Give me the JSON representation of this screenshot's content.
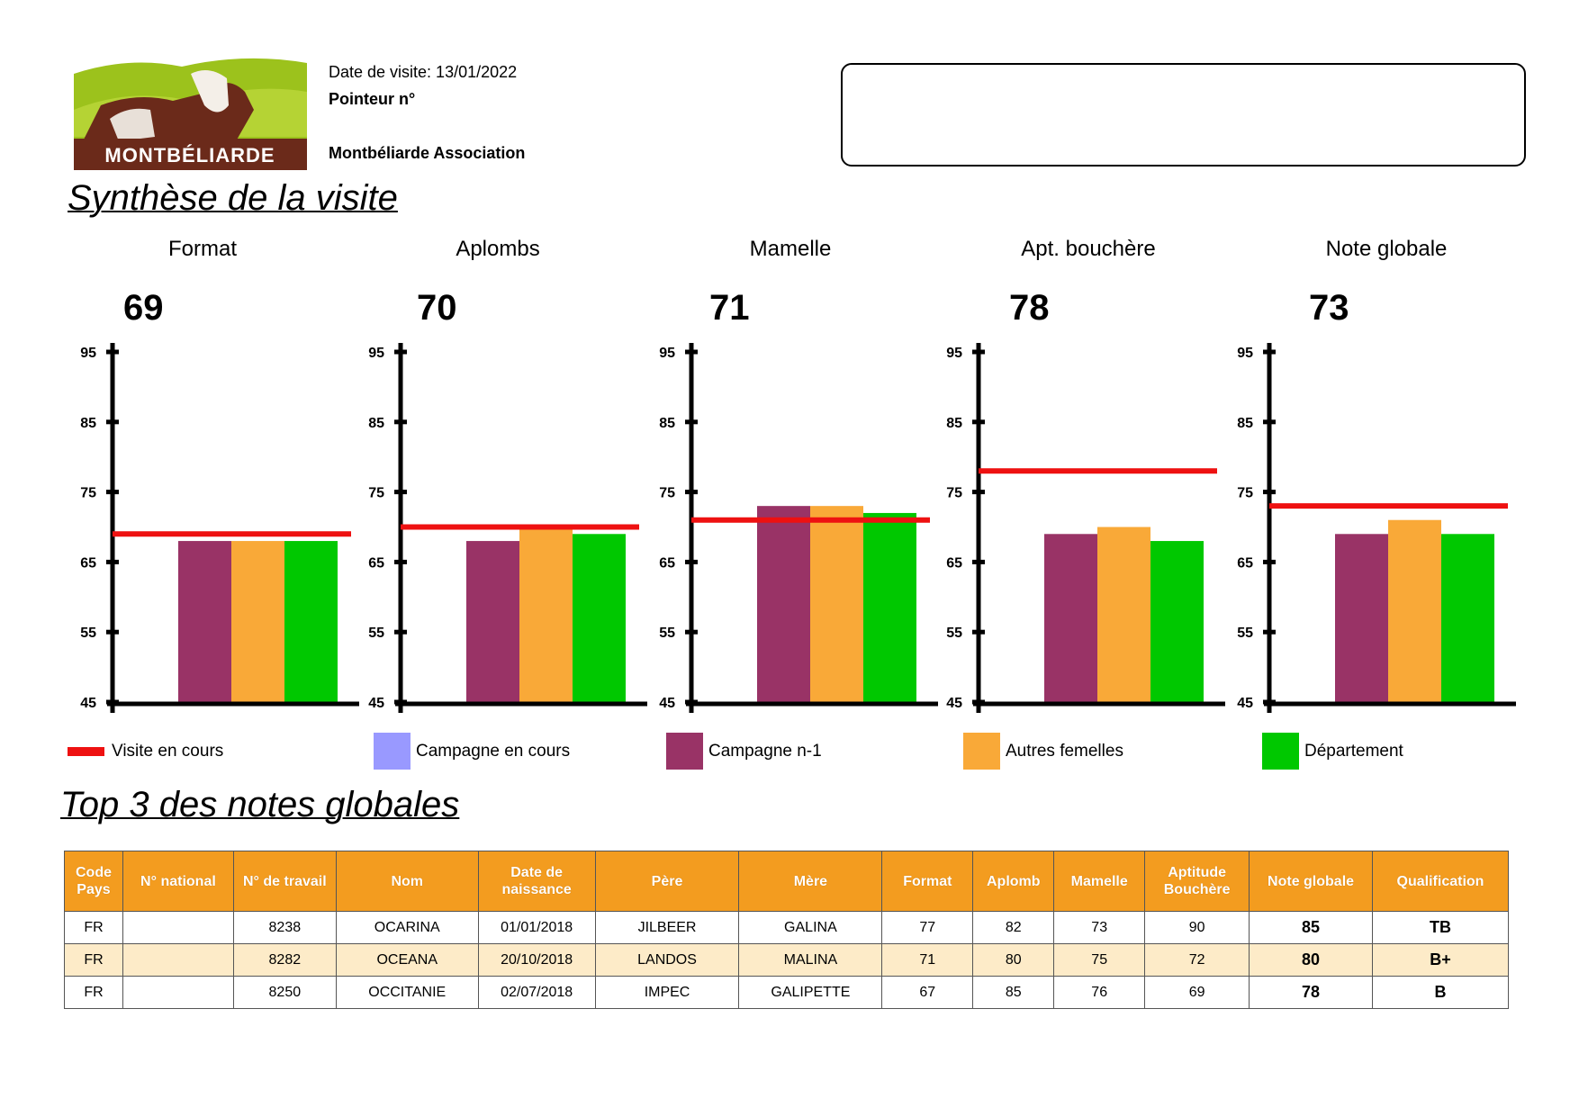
{
  "header": {
    "logo_text": "MONTBÉLIARDE",
    "visit_date": "Date de visite: 13/01/2022",
    "pointer": "Pointeur n°",
    "association": "Montbéliarde Association"
  },
  "synthese_title": "Synthèse de la visite",
  "chart_data": [
    {
      "type": "bar",
      "title": "Format",
      "score": "69",
      "visite": 69,
      "categories": [
        "Campagne n-1",
        "Autres femelles",
        "Département"
      ],
      "values": [
        68,
        68,
        68
      ],
      "ylim": [
        45,
        95
      ],
      "yticks": [
        "95",
        "85",
        "75",
        "65",
        "55",
        "45"
      ]
    },
    {
      "type": "bar",
      "title": "Aplombs",
      "score": "70",
      "visite": 70,
      "categories": [
        "Campagne n-1",
        "Autres femelles",
        "Département"
      ],
      "values": [
        68,
        70,
        69
      ],
      "ylim": [
        45,
        95
      ],
      "yticks": [
        "95",
        "85",
        "75",
        "65",
        "55",
        "45"
      ]
    },
    {
      "type": "bar",
      "title": "Mamelle",
      "score": "71",
      "visite": 71,
      "categories": [
        "Campagne n-1",
        "Autres femelles",
        "Département"
      ],
      "values": [
        73,
        73,
        72
      ],
      "ylim": [
        45,
        95
      ],
      "yticks": [
        "95",
        "85",
        "75",
        "65",
        "55",
        "45"
      ]
    },
    {
      "type": "bar",
      "title": "Apt. bouchère",
      "score": "78",
      "visite": 78,
      "categories": [
        "Campagne n-1",
        "Autres femelles",
        "Département"
      ],
      "values": [
        69,
        70,
        68
      ],
      "ylim": [
        45,
        95
      ],
      "yticks": [
        "95",
        "85",
        "75",
        "65",
        "55",
        "45"
      ]
    },
    {
      "type": "bar",
      "title": "Note globale",
      "score": "73",
      "visite": 73,
      "categories": [
        "Campagne n-1",
        "Autres femelles",
        "Département"
      ],
      "values": [
        69,
        71,
        69
      ],
      "ylim": [
        45,
        95
      ],
      "yticks": [
        "95",
        "85",
        "75",
        "65",
        "55",
        "45"
      ]
    }
  ],
  "colors": {
    "visite": "#ee1111",
    "campagne_en_cours": "#9999ff",
    "campagne_n1": "#993366",
    "autres": "#f9a938",
    "departement": "#00c800",
    "header_bg": "#f39c1f"
  },
  "legend": [
    {
      "label": "Visite en cours"
    },
    {
      "label": "Campagne en cours"
    },
    {
      "label": "Campagne n-1"
    },
    {
      "label": "Autres femelles"
    },
    {
      "label": "Département"
    }
  ],
  "top3_title": "Top 3 des notes globales",
  "table": {
    "headers": [
      "Code Pays",
      "N° national",
      "N° de travail",
      "Nom",
      "Date de naissance",
      "Père",
      "Mère",
      "Format",
      "Aplomb",
      "Mamelle",
      "Aptitude Bouchère",
      "Note globale",
      "Qualification"
    ],
    "rows": [
      [
        "FR",
        "",
        "8238",
        "OCARINA",
        "01/01/2018",
        "JILBEER",
        "GALINA",
        "77",
        "82",
        "73",
        "90",
        "85",
        "TB"
      ],
      [
        "FR",
        "",
        "8282",
        "OCEANA",
        "20/10/2018",
        "LANDOS",
        "MALINA",
        "71",
        "80",
        "75",
        "72",
        "80",
        "B+"
      ],
      [
        "FR",
        "",
        "8250",
        "OCCITANIE",
        "02/07/2018",
        "IMPEC",
        "GALIPETTE",
        "67",
        "85",
        "76",
        "69",
        "78",
        "B"
      ]
    ]
  }
}
